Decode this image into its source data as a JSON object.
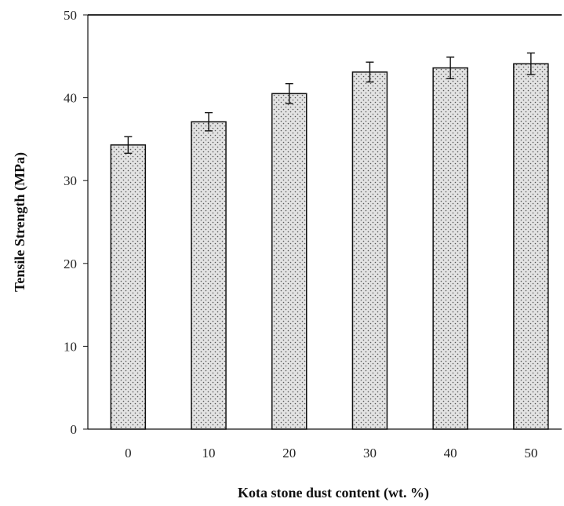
{
  "chart_data": {
    "type": "bar",
    "categories": [
      "0",
      "10",
      "20",
      "30",
      "40",
      "50"
    ],
    "values": [
      34.3,
      37.1,
      40.5,
      43.1,
      43.6,
      44.1
    ],
    "errors": [
      1.0,
      1.1,
      1.2,
      1.2,
      1.3,
      1.3
    ],
    "title": "",
    "xlabel": "Kota stone dust content (wt. %)",
    "ylabel": "Tensile Strength (MPa)",
    "ylim": [
      0,
      50
    ],
    "yticks": [
      "0",
      "10",
      "20",
      "30",
      "40",
      "50"
    ],
    "grid": false,
    "bar_fill": "stippled",
    "colors": {
      "bar_fill": "#e2e2e2",
      "dots": "#555555",
      "outline": "#111111"
    }
  }
}
